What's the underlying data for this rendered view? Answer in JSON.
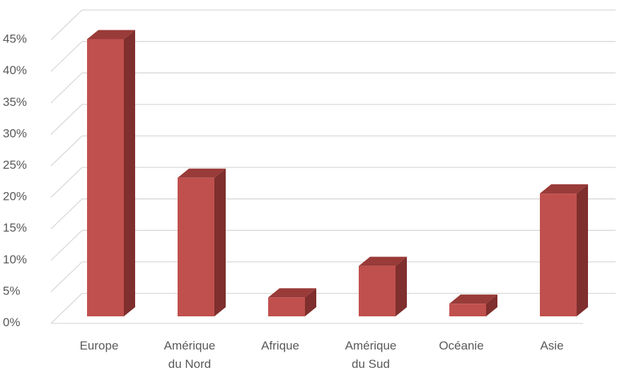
{
  "chart_data": {
    "type": "bar",
    "categories": [
      [
        "Europe"
      ],
      [
        "Amérique",
        "du Nord"
      ],
      [
        "Afrique"
      ],
      [
        "Amérique",
        "du Sud"
      ],
      [
        "Océanie"
      ],
      [
        "Asie"
      ]
    ],
    "values": [
      44,
      22,
      3,
      8,
      2,
      19.5
    ],
    "yticks": [
      "0%",
      "5%",
      "10%",
      "15%",
      "20%",
      "25%",
      "30%",
      "35%",
      "40%",
      "45%"
    ],
    "ylim": [
      0,
      45
    ],
    "ystep": 5,
    "title": "",
    "xlabel": "",
    "ylabel": "",
    "grid": true,
    "legend": "none",
    "colors": {
      "bar_front": "#c0504d",
      "bar_side": "#7f2f2d",
      "bar_top": "#993b38",
      "grid": "#d9d9d9",
      "text": "#595959"
    }
  }
}
